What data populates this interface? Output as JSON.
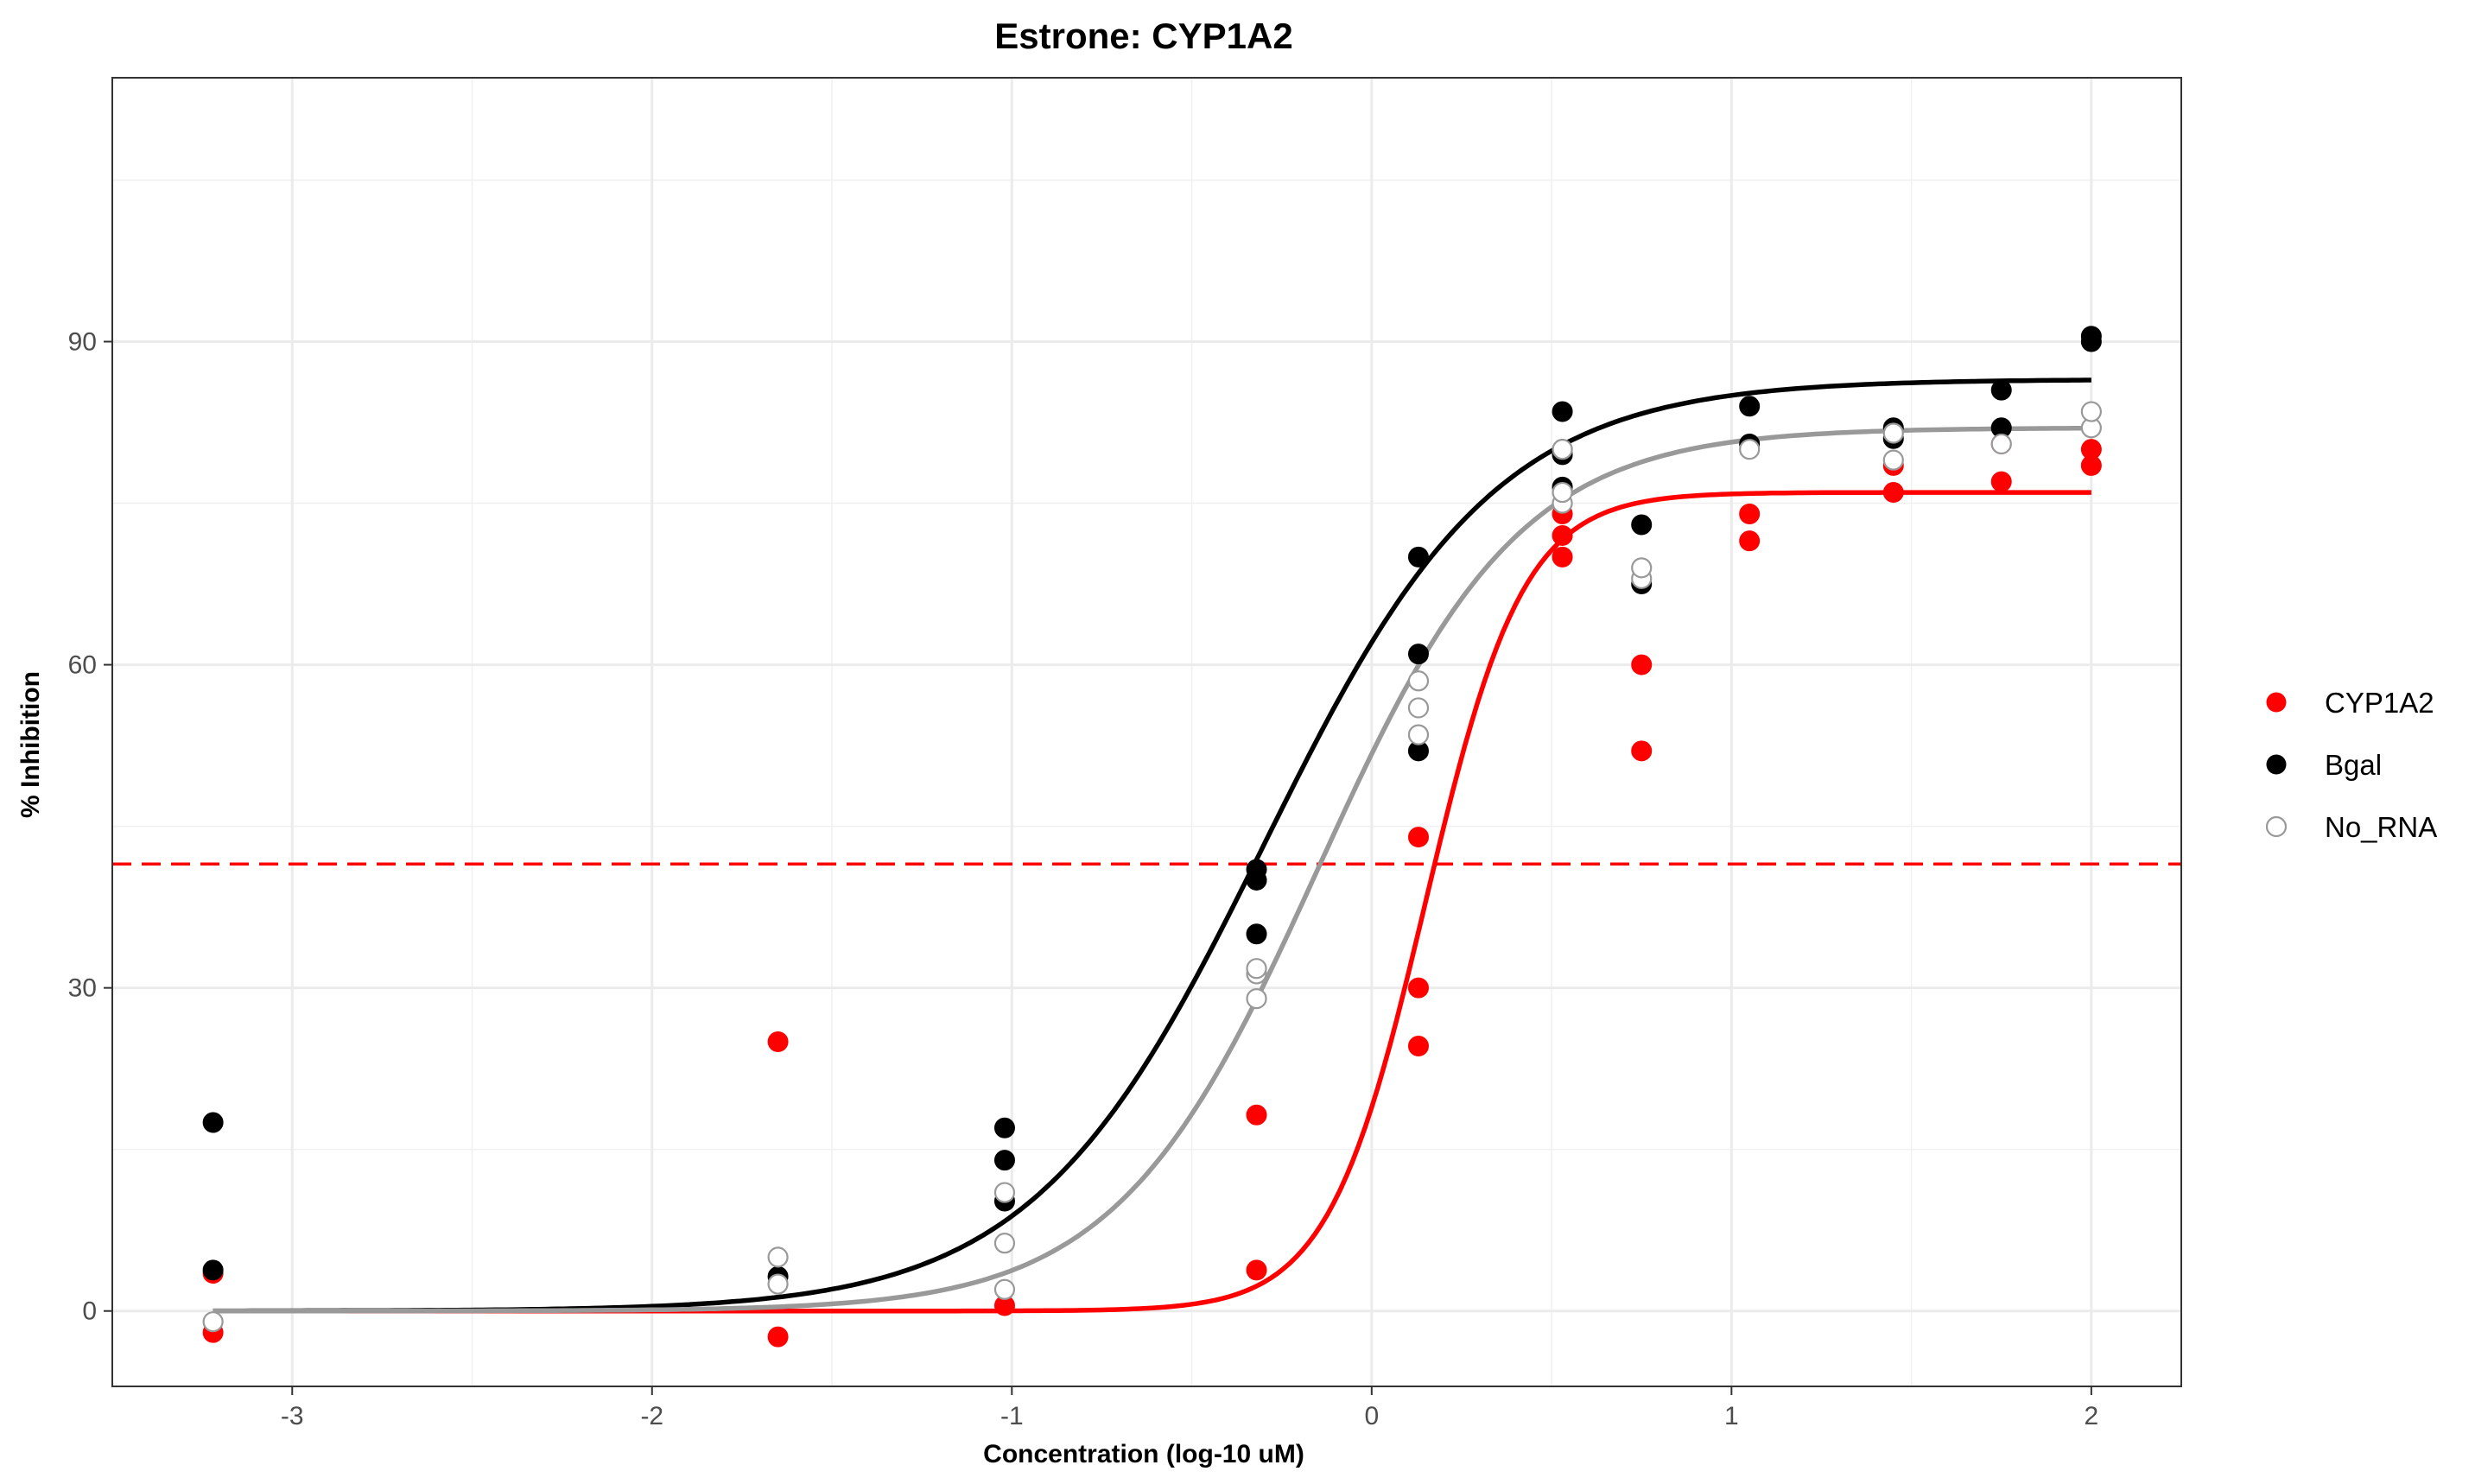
{
  "chart_data": {
    "type": "scatter",
    "title": "Estrone: CYP1A2",
    "xlabel": "Concentration (log-10 uM)",
    "ylabel": "% Inhibition",
    "xlim": [
      -3.5,
      2.25
    ],
    "ylim": [
      114.5,
      -7
    ],
    "y_reversed": true,
    "x_ticks": [
      -3,
      -2,
      -1,
      0,
      1,
      2
    ],
    "x_tick_labels": [
      "-3",
      "-2",
      "-1",
      "0",
      "1",
      "2"
    ],
    "y_ticks": [
      0,
      30,
      60,
      90
    ],
    "y_tick_labels": [
      "0",
      "30",
      "60",
      "90"
    ],
    "grid": true,
    "legend_position": "right",
    "reference_line": {
      "y": 41.5,
      "color": "#ff0000",
      "style": "dashed"
    },
    "series": [
      {
        "name": "CYP1A2",
        "color": "#ff0000",
        "marker": "filled",
        "points": [
          [
            -3.22,
            -2
          ],
          [
            -3.22,
            3.5
          ],
          [
            -1.65,
            -2.4
          ],
          [
            -1.65,
            25
          ],
          [
            -1.02,
            0.5
          ],
          [
            -0.32,
            3.8
          ],
          [
            -0.32,
            18.2
          ],
          [
            0.13,
            24.6
          ],
          [
            0.13,
            30
          ],
          [
            0.13,
            44
          ],
          [
            0.53,
            70
          ],
          [
            0.53,
            72
          ],
          [
            0.53,
            74
          ],
          [
            0.75,
            52
          ],
          [
            0.75,
            60
          ],
          [
            1.05,
            71.5
          ],
          [
            1.05,
            74
          ],
          [
            1.45,
            76
          ],
          [
            1.45,
            78.5
          ],
          [
            1.75,
            77
          ],
          [
            1.75,
            80.5
          ],
          [
            2.0,
            78.5
          ],
          [
            2.0,
            80
          ]
        ],
        "curve": {
          "bottom": 0,
          "top": 76,
          "ec50_log": 0.15,
          "hill": 3.2,
          "x_range": [
            -3.22,
            2.0
          ]
        }
      },
      {
        "name": "Bgal",
        "color": "#000000",
        "marker": "filled",
        "points": [
          [
            -3.22,
            3.8
          ],
          [
            -3.22,
            17.5
          ],
          [
            -1.65,
            3.2
          ],
          [
            -1.02,
            10.2
          ],
          [
            -1.02,
            14
          ],
          [
            -1.02,
            17
          ],
          [
            -0.32,
            35
          ],
          [
            -0.32,
            40
          ],
          [
            -0.32,
            41
          ],
          [
            0.13,
            52
          ],
          [
            0.13,
            61
          ],
          [
            0.13,
            70
          ],
          [
            0.53,
            76.5
          ],
          [
            0.53,
            79.5
          ],
          [
            0.53,
            80
          ],
          [
            0.53,
            83.5
          ],
          [
            0.75,
            67.5
          ],
          [
            0.75,
            73
          ],
          [
            1.05,
            80.5
          ],
          [
            1.05,
            84
          ],
          [
            1.45,
            81
          ],
          [
            1.45,
            82
          ],
          [
            1.75,
            82
          ],
          [
            1.75,
            85.5
          ],
          [
            2.0,
            90
          ],
          [
            2.0,
            90.5
          ]
        ],
        "curve": {
          "bottom": 0,
          "top": 86.5,
          "ec50_log": -0.3,
          "hill": 1.35,
          "x_range": [
            -3.22,
            2.0
          ]
        }
      },
      {
        "name": "No_RNA",
        "color": "#999999",
        "marker": "open",
        "points": [
          [
            -3.22,
            -1
          ],
          [
            -1.65,
            2.5
          ],
          [
            -1.65,
            5
          ],
          [
            -1.02,
            2
          ],
          [
            -1.02,
            6.3
          ],
          [
            -1.02,
            11
          ],
          [
            -0.32,
            29
          ],
          [
            -0.32,
            31.3
          ],
          [
            -0.32,
            31.8
          ],
          [
            0.13,
            53.5
          ],
          [
            0.13,
            56
          ],
          [
            0.13,
            58.5
          ],
          [
            0.53,
            75
          ],
          [
            0.53,
            76
          ],
          [
            0.53,
            80
          ],
          [
            0.75,
            68
          ],
          [
            0.75,
            69
          ],
          [
            1.05,
            80
          ],
          [
            1.45,
            79
          ],
          [
            1.45,
            81.5
          ],
          [
            1.75,
            80.5
          ],
          [
            2.0,
            82
          ],
          [
            2.0,
            83.5
          ]
        ],
        "curve": {
          "bottom": 0,
          "top": 82,
          "ec50_log": -0.15,
          "hill": 1.55,
          "x_range": [
            -3.22,
            2.0
          ]
        }
      }
    ]
  }
}
